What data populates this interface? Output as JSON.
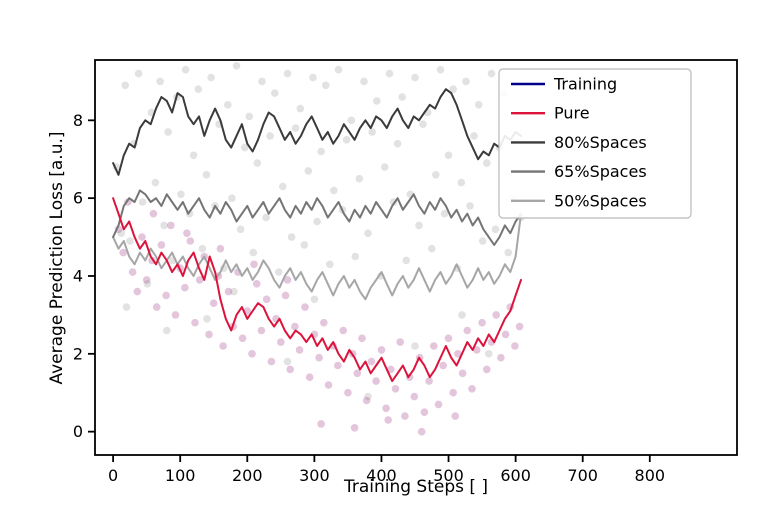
{
  "chart_data": {
    "type": "line",
    "title": "",
    "xlabel": "Training Steps [ ]",
    "ylabel": "Average Prediction Loss [a.u.]",
    "xlim": [
      -27,
      930
    ],
    "ylim": [
      -0.6,
      9.55
    ],
    "xticks": [
      0,
      100,
      200,
      300,
      400,
      500,
      600,
      700,
      800
    ],
    "yticks": [
      0,
      2,
      4,
      6,
      8
    ],
    "grid": false,
    "legend_position": "upper right",
    "x_start": 0,
    "x_step": 8,
    "series": [
      {
        "name": "Training",
        "color": "#00008b",
        "zorder": 4,
        "values": []
      },
      {
        "name": "Pure",
        "color": "#dc143c",
        "zorder": 5,
        "values": [
          6.0,
          5.6,
          5.2,
          5.4,
          5.0,
          4.7,
          4.9,
          4.5,
          4.3,
          4.6,
          4.4,
          4.1,
          4.3,
          4.0,
          4.4,
          4.6,
          4.2,
          3.9,
          4.5,
          4.1,
          3.4,
          2.9,
          2.6,
          3.0,
          3.2,
          2.9,
          3.1,
          3.3,
          3.2,
          2.9,
          2.7,
          2.9,
          2.6,
          2.4,
          2.6,
          2.5,
          2.3,
          2.5,
          2.2,
          2.4,
          2.1,
          2.3,
          2.0,
          1.8,
          2.1,
          1.9,
          1.6,
          1.8,
          1.5,
          1.7,
          1.9,
          1.6,
          1.3,
          1.5,
          1.7,
          1.4,
          1.6,
          1.9,
          1.7,
          1.4,
          1.6,
          1.9,
          2.2,
          1.9,
          1.7,
          2.0,
          2.3,
          2.1,
          2.4,
          2.2,
          2.5,
          2.3,
          2.6,
          2.9,
          3.1,
          3.5,
          3.9
        ]
      },
      {
        "name": "80%Spaces",
        "color": "#3b3b3b",
        "zorder": 3,
        "values": [
          6.9,
          6.6,
          7.1,
          7.4,
          7.3,
          7.8,
          8.0,
          7.9,
          8.3,
          8.6,
          8.5,
          8.2,
          8.7,
          8.6,
          8.1,
          7.9,
          8.1,
          7.6,
          8.0,
          8.3,
          8.0,
          7.5,
          7.3,
          7.6,
          7.9,
          7.4,
          7.2,
          7.5,
          7.9,
          8.2,
          8.1,
          7.8,
          7.5,
          7.7,
          7.4,
          7.6,
          7.9,
          8.1,
          7.8,
          7.5,
          7.7,
          7.4,
          7.6,
          7.9,
          7.7,
          7.5,
          7.8,
          8.0,
          7.8,
          8.1,
          8.0,
          7.8,
          8.1,
          8.3,
          8.0,
          7.8,
          8.1,
          8.0,
          8.2,
          8.4,
          8.3,
          8.6,
          8.8,
          8.7,
          8.4,
          8.0,
          7.6,
          7.3,
          7.0,
          7.2,
          7.1,
          7.4,
          7.3,
          7.6,
          7.5,
          7.7,
          7.6
        ]
      },
      {
        "name": "65%Spaces",
        "color": "#757575",
        "zorder": 2,
        "values": [
          5.0,
          5.3,
          5.8,
          6.0,
          5.9,
          6.2,
          6.1,
          5.9,
          6.0,
          5.8,
          6.1,
          5.9,
          5.7,
          5.9,
          5.6,
          5.8,
          6.0,
          5.7,
          5.5,
          5.8,
          5.6,
          5.9,
          5.7,
          5.4,
          5.6,
          5.8,
          5.5,
          5.7,
          5.9,
          5.6,
          5.8,
          6.0,
          5.7,
          5.5,
          5.8,
          5.6,
          5.9,
          5.7,
          6.0,
          5.8,
          5.5,
          5.7,
          5.9,
          5.6,
          5.4,
          5.7,
          5.5,
          5.8,
          5.6,
          5.9,
          5.7,
          5.5,
          5.8,
          6.0,
          5.7,
          5.9,
          6.1,
          5.8,
          5.6,
          5.9,
          5.7,
          6.0,
          5.8,
          5.5,
          5.7,
          5.4,
          5.6,
          5.3,
          5.5,
          5.2,
          5.0,
          4.8,
          5.0,
          5.3,
          5.1,
          5.4,
          5.6
        ]
      },
      {
        "name": "50%Spaces",
        "color": "#a6a6a6",
        "zorder": 1,
        "values": [
          5.0,
          4.7,
          4.9,
          4.5,
          4.3,
          4.6,
          4.4,
          4.7,
          4.5,
          4.2,
          4.4,
          4.6,
          4.3,
          4.5,
          4.2,
          4.0,
          4.3,
          4.5,
          4.2,
          3.9,
          4.1,
          4.4,
          4.1,
          4.3,
          4.0,
          4.2,
          3.9,
          4.1,
          4.4,
          4.2,
          3.9,
          3.7,
          4.0,
          4.2,
          3.9,
          4.1,
          3.8,
          3.6,
          3.9,
          4.1,
          3.8,
          3.5,
          3.8,
          4.0,
          3.7,
          3.9,
          3.6,
          3.4,
          3.7,
          3.9,
          4.1,
          3.8,
          3.5,
          3.8,
          4.0,
          3.7,
          3.9,
          4.2,
          3.9,
          3.6,
          3.9,
          4.1,
          3.8,
          4.0,
          4.3,
          4.0,
          3.7,
          3.9,
          4.2,
          3.9,
          4.1,
          3.8,
          4.0,
          4.3,
          4.1,
          4.5,
          5.6
        ]
      }
    ],
    "scatter": [
      {
        "name": "raw-loss-gray",
        "color": "#8c8c8c",
        "opacity": 0.25,
        "points": [
          [
            5,
            6.8
          ],
          [
            12,
            5.1
          ],
          [
            18,
            8.9
          ],
          [
            25,
            4.9
          ],
          [
            31,
            7.4
          ],
          [
            38,
            9.2
          ],
          [
            44,
            5.9
          ],
          [
            51,
            3.8
          ],
          [
            57,
            8.2
          ],
          [
            63,
            6.4
          ],
          [
            70,
            9.0
          ],
          [
            76,
            5.3
          ],
          [
            82,
            7.7
          ],
          [
            89,
            4.4
          ],
          [
            95,
            8.6
          ],
          [
            101,
            6.1
          ],
          [
            108,
            9.3
          ],
          [
            114,
            5.6
          ],
          [
            120,
            7.1
          ],
          [
            127,
            8.8
          ],
          [
            133,
            4.7
          ],
          [
            139,
            6.6
          ],
          [
            146,
            9.1
          ],
          [
            152,
            5.8
          ],
          [
            158,
            7.9
          ],
          [
            165,
            4.2
          ],
          [
            171,
            8.4
          ],
          [
            177,
            6.0
          ],
          [
            184,
            9.4
          ],
          [
            190,
            5.2
          ],
          [
            196,
            7.3
          ],
          [
            203,
            8.1
          ],
          [
            209,
            4.6
          ],
          [
            215,
            6.9
          ],
          [
            222,
            9.0
          ],
          [
            228,
            5.5
          ],
          [
            234,
            7.6
          ],
          [
            241,
            8.7
          ],
          [
            247,
            4.1
          ],
          [
            253,
            6.3
          ],
          [
            260,
            9.2
          ],
          [
            266,
            5.0
          ],
          [
            272,
            7.8
          ],
          [
            279,
            8.3
          ],
          [
            285,
            4.8
          ],
          [
            291,
            6.7
          ],
          [
            298,
            9.1
          ],
          [
            304,
            5.4
          ],
          [
            310,
            7.2
          ],
          [
            317,
            8.9
          ],
          [
            323,
            4.3
          ],
          [
            329,
            6.2
          ],
          [
            336,
            9.3
          ],
          [
            342,
            5.7
          ],
          [
            348,
            7.5
          ],
          [
            355,
            8.0
          ],
          [
            361,
            4.5
          ],
          [
            367,
            6.5
          ],
          [
            374,
            9.0
          ],
          [
            380,
            5.1
          ],
          [
            386,
            7.7
          ],
          [
            393,
            8.5
          ],
          [
            399,
            4.0
          ],
          [
            405,
            6.8
          ],
          [
            412,
            9.2
          ],
          [
            418,
            5.9
          ],
          [
            424,
            7.4
          ],
          [
            431,
            8.6
          ],
          [
            437,
            4.4
          ],
          [
            443,
            6.1
          ],
          [
            450,
            9.1
          ],
          [
            456,
            5.3
          ],
          [
            462,
            7.9
          ],
          [
            469,
            8.2
          ],
          [
            475,
            4.7
          ],
          [
            481,
            6.6
          ],
          [
            488,
            9.3
          ],
          [
            494,
            5.6
          ],
          [
            500,
            7.1
          ],
          [
            507,
            8.8
          ],
          [
            513,
            4.2
          ],
          [
            519,
            6.4
          ],
          [
            526,
            9.0
          ],
          [
            532,
            5.8
          ],
          [
            538,
            7.6
          ],
          [
            545,
            8.4
          ],
          [
            551,
            4.9
          ],
          [
            557,
            6.9
          ],
          [
            564,
            9.2
          ],
          [
            570,
            5.2
          ],
          [
            576,
            7.3
          ],
          [
            583,
            8.7
          ],
          [
            589,
            4.6
          ],
          [
            595,
            6.0
          ],
          [
            602,
            8.1
          ],
          [
            608,
            5.5
          ],
          [
            20,
            3.2
          ],
          [
            140,
            2.9
          ],
          [
            260,
            1.8
          ],
          [
            380,
            0.9
          ],
          [
            450,
            2.2
          ],
          [
            300,
            3.4
          ],
          [
            520,
            3.0
          ],
          [
            180,
            3.6
          ],
          [
            80,
            2.6
          ],
          [
            560,
            2.0
          ]
        ]
      },
      {
        "name": "raw-loss-pink",
        "color": "#b0589a",
        "opacity": 0.35,
        "points": [
          [
            8,
            5.2
          ],
          [
            15,
            4.6
          ],
          [
            22,
            5.9
          ],
          [
            29,
            4.1
          ],
          [
            36,
            3.6
          ],
          [
            43,
            5.0
          ],
          [
            50,
            3.9
          ],
          [
            58,
            4.4
          ],
          [
            65,
            3.2
          ],
          [
            72,
            4.8
          ],
          [
            79,
            3.5
          ],
          [
            86,
            5.3
          ],
          [
            93,
            3.0
          ],
          [
            100,
            4.2
          ],
          [
            107,
            3.7
          ],
          [
            115,
            4.9
          ],
          [
            122,
            2.8
          ],
          [
            129,
            3.9
          ],
          [
            136,
            4.5
          ],
          [
            143,
            2.5
          ],
          [
            150,
            3.3
          ],
          [
            157,
            4.0
          ],
          [
            164,
            2.2
          ],
          [
            172,
            3.6
          ],
          [
            179,
            2.7
          ],
          [
            186,
            4.1
          ],
          [
            193,
            2.4
          ],
          [
            200,
            3.1
          ],
          [
            207,
            2.0
          ],
          [
            214,
            3.8
          ],
          [
            221,
            2.6
          ],
          [
            229,
            3.4
          ],
          [
            236,
            1.8
          ],
          [
            243,
            2.9
          ],
          [
            250,
            2.3
          ],
          [
            257,
            3.5
          ],
          [
            264,
            1.6
          ],
          [
            271,
            2.7
          ],
          [
            278,
            2.1
          ],
          [
            286,
            3.2
          ],
          [
            293,
            1.4
          ],
          [
            300,
            2.5
          ],
          [
            307,
            1.9
          ],
          [
            314,
            2.8
          ],
          [
            321,
            1.2
          ],
          [
            328,
            2.2
          ],
          [
            335,
            1.7
          ],
          [
            343,
            2.6
          ],
          [
            350,
            1.0
          ],
          [
            357,
            2.0
          ],
          [
            364,
            1.5
          ],
          [
            371,
            2.4
          ],
          [
            378,
            0.8
          ],
          [
            385,
            1.8
          ],
          [
            392,
            1.3
          ],
          [
            400,
            2.1
          ],
          [
            407,
            0.6
          ],
          [
            414,
            1.6
          ],
          [
            421,
            1.1
          ],
          [
            428,
            2.3
          ],
          [
            435,
            0.4
          ],
          [
            442,
            1.4
          ],
          [
            449,
            0.9
          ],
          [
            457,
            1.9
          ],
          [
            464,
            0.5
          ],
          [
            471,
            1.3
          ],
          [
            478,
            2.2
          ],
          [
            485,
            0.7
          ],
          [
            492,
            1.7
          ],
          [
            500,
            2.4
          ],
          [
            507,
            1.0
          ],
          [
            514,
            2.0
          ],
          [
            521,
            1.5
          ],
          [
            528,
            2.6
          ],
          [
            535,
            1.1
          ],
          [
            542,
            2.1
          ],
          [
            550,
            2.8
          ],
          [
            557,
            1.6
          ],
          [
            564,
            2.3
          ],
          [
            571,
            3.0
          ],
          [
            578,
            1.9
          ],
          [
            585,
            2.5
          ],
          [
            592,
            3.2
          ],
          [
            599,
            2.2
          ],
          [
            606,
            2.7
          ],
          [
            60,
            5.6
          ],
          [
            110,
            5.1
          ],
          [
            160,
            4.7
          ],
          [
            210,
            4.3
          ],
          [
            260,
            3.9
          ],
          [
            310,
            0.2
          ],
          [
            360,
            0.1
          ],
          [
            410,
            0.3
          ],
          [
            460,
            0.0
          ],
          [
            510,
            0.4
          ]
        ]
      }
    ]
  }
}
